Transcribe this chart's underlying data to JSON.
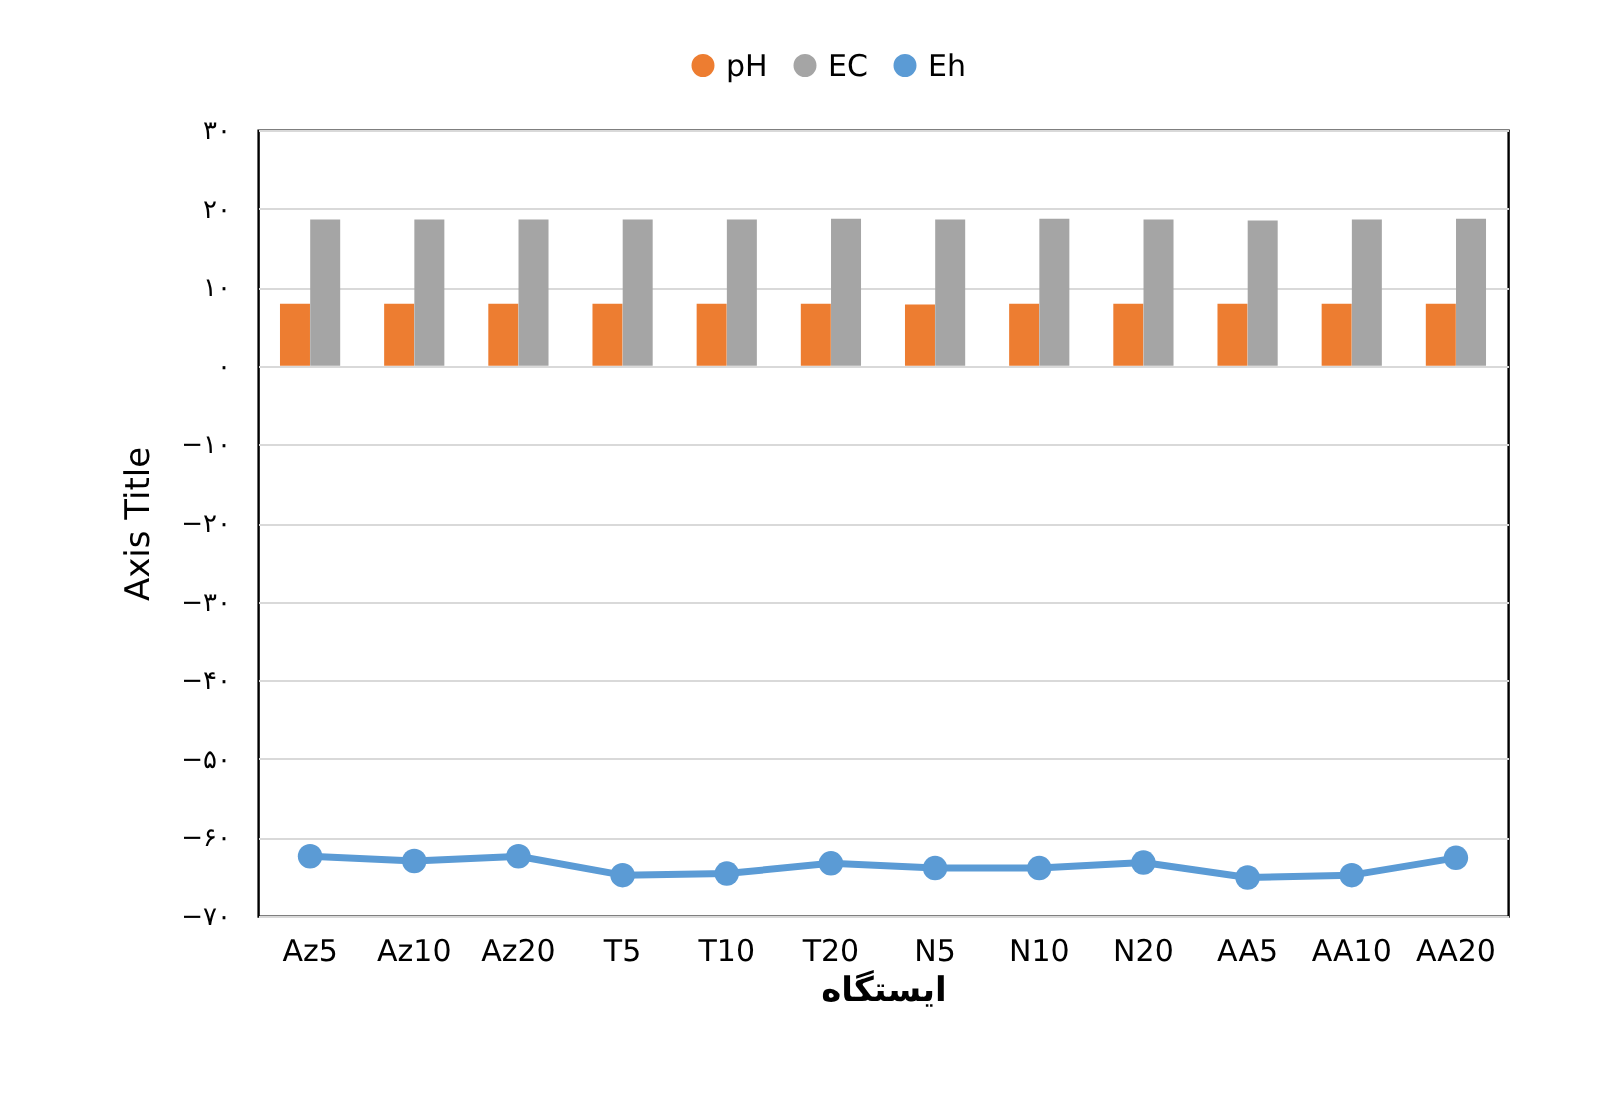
{
  "chart_data": {
    "type": "bar",
    "xlabel": "ایستگاه",
    "ylabel": "Axis Title",
    "categories": [
      "Az5",
      "Az10",
      "Az20",
      "T5",
      "T10",
      "T20",
      "N5",
      "N10",
      "N20",
      "AA5",
      "AA10",
      "AA20"
    ],
    "series": [
      {
        "name": "pH",
        "color": "#ed7d31",
        "values": [
          7.9,
          7.9,
          7.9,
          7.9,
          7.9,
          7.9,
          7.8,
          7.9,
          7.9,
          7.9,
          7.9,
          7.9
        ]
      },
      {
        "name": "EC",
        "color": "#a5a5a5",
        "values": [
          18.6,
          18.6,
          18.6,
          18.6,
          18.6,
          18.7,
          18.6,
          18.7,
          18.6,
          18.5,
          18.6,
          18.7
        ]
      },
      {
        "name": "Eh",
        "type": "line",
        "color": "#5b9bd5",
        "marker": "circle",
        "values": [
          -62.4,
          -63.0,
          -62.4,
          -64.8,
          -64.6,
          -63.3,
          -63.9,
          -63.9,
          -63.2,
          -65.1,
          -64.8,
          -62.6
        ]
      }
    ],
    "ylim": [
      -70,
      30
    ],
    "yticks": [
      {
        "value": 30,
        "label": "۳۰"
      },
      {
        "value": 20,
        "label": "۲۰"
      },
      {
        "value": 10,
        "label": "۱۰"
      },
      {
        "value": 0,
        "label": "۰"
      },
      {
        "value": -10,
        "label": "−۱۰"
      },
      {
        "value": -20,
        "label": "−۲۰"
      },
      {
        "value": -30,
        "label": "−۳۰"
      },
      {
        "value": -40,
        "label": "−۴۰"
      },
      {
        "value": -50,
        "label": "−۵۰"
      },
      {
        "value": -60,
        "label": "−۶۰"
      },
      {
        "value": -70,
        "label": "−۷۰"
      }
    ],
    "grid": "y",
    "legend": "top",
    "line_style": "solid"
  }
}
